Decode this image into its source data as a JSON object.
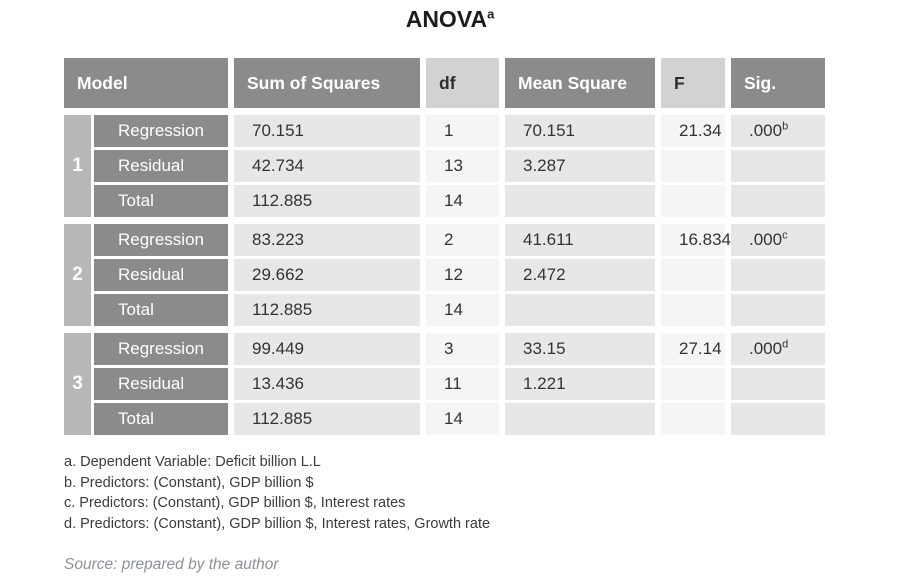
{
  "title": {
    "text": "ANOVA",
    "superscript": "a"
  },
  "table": {
    "headers": [
      {
        "label": "Model",
        "variant": "dark"
      },
      {
        "label": "Sum of Squares",
        "variant": "dark"
      },
      {
        "label": "df",
        "variant": "light"
      },
      {
        "label": "Mean Square",
        "variant": "dark"
      },
      {
        "label": "F",
        "variant": "light"
      },
      {
        "label": "Sig.",
        "variant": "dark"
      }
    ],
    "models": [
      {
        "number": "1",
        "rows": [
          {
            "label": "Regression",
            "sum_of_squares": "70.151",
            "df": "1",
            "mean_square": "70.151",
            "f": "21.34",
            "sig": ".000",
            "sig_sup": "b"
          },
          {
            "label": "Residual",
            "sum_of_squares": "42.734",
            "df": "13",
            "mean_square": "3.287",
            "f": "",
            "sig": "",
            "sig_sup": ""
          },
          {
            "label": "Total",
            "sum_of_squares": "112.885",
            "df": "14",
            "mean_square": "",
            "f": "",
            "sig": "",
            "sig_sup": ""
          }
        ]
      },
      {
        "number": "2",
        "rows": [
          {
            "label": "Regression",
            "sum_of_squares": "83.223",
            "df": "2",
            "mean_square": "41.611",
            "f": "16.834",
            "sig": ".000",
            "sig_sup": "c"
          },
          {
            "label": "Residual",
            "sum_of_squares": "29.662",
            "df": "12",
            "mean_square": "2.472",
            "f": "",
            "sig": "",
            "sig_sup": ""
          },
          {
            "label": "Total",
            "sum_of_squares": "112.885",
            "df": "14",
            "mean_square": "",
            "f": "",
            "sig": "",
            "sig_sup": ""
          }
        ]
      },
      {
        "number": "3",
        "rows": [
          {
            "label": "Regression",
            "sum_of_squares": "99.449",
            "df": "3",
            "mean_square": "33.15",
            "f": "27.14",
            "sig": ".000",
            "sig_sup": "d"
          },
          {
            "label": "Residual",
            "sum_of_squares": "13.436",
            "df": "11",
            "mean_square": "1.221",
            "f": "",
            "sig": "",
            "sig_sup": ""
          },
          {
            "label": "Total",
            "sum_of_squares": "112.885",
            "df": "14",
            "mean_square": "",
            "f": "",
            "sig": "",
            "sig_sup": ""
          }
        ]
      }
    ]
  },
  "footnotes": [
    "a. Dependent Variable: Deficit billion L.L",
    "b. Predictors: (Constant), GDP billion $",
    "c. Predictors: (Constant), GDP billion $, Interest rates",
    "d. Predictors: (Constant), GDP billion $, Interest rates, Growth rate"
  ],
  "source": "Source: prepared by the author",
  "colors": {
    "header_dark": "#8b8b8b",
    "header_light": "#d2d2d2",
    "model_strip": "#b7b7b7",
    "row_label_bg": "#8b8b8b",
    "cell_shaded": "#e7e7e7",
    "cell_light": "#f5f5f5",
    "body_text": "#333333",
    "source_text": "#8c9097"
  }
}
